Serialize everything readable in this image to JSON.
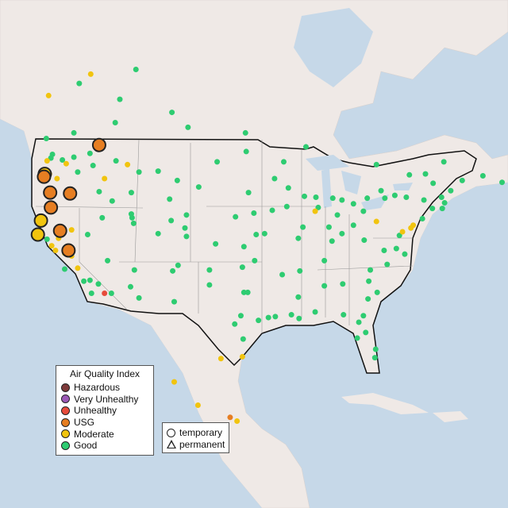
{
  "legend": {
    "title": "Air Quality Index",
    "categories": [
      {
        "key": "hazardous",
        "label": "Hazardous",
        "color": "#7e3a3a"
      },
      {
        "key": "very_unhealthy",
        "label": "Very Unhealthy",
        "color": "#9b59b6"
      },
      {
        "key": "unhealthy",
        "label": "Unhealthy",
        "color": "#e74c3c"
      },
      {
        "key": "usg",
        "label": "USG",
        "color": "#e67e22"
      },
      {
        "key": "moderate",
        "label": "Moderate",
        "color": "#f1c40f"
      },
      {
        "key": "good",
        "label": "Good",
        "color": "#2ecc71"
      }
    ],
    "no_data_color": "#bbbbbb"
  },
  "shape_legend": {
    "temporary": "temporary",
    "permanent": "permanent"
  },
  "map": {
    "land_color": "#efe9e6",
    "ocean_color": "#c6d8e8",
    "large_monitors": [
      [
        -116.2,
        48.6,
        "usg"
      ],
      [
        -123.3,
        45.5,
        "moderate"
      ],
      [
        -123.4,
        45.2,
        "usg"
      ],
      [
        -122.6,
        43.5,
        "usg"
      ],
      [
        -120.0,
        43.4,
        "usg"
      ],
      [
        -122.5,
        41.9,
        "usg"
      ],
      [
        -123.8,
        40.5,
        "moderate"
      ],
      [
        -124.2,
        39.0,
        "moderate"
      ],
      [
        -121.3,
        39.4,
        "usg"
      ],
      [
        -120.2,
        37.3,
        "usg"
      ]
    ],
    "small_monitors": [
      [
        -122.3,
        47.6,
        "good"
      ],
      [
        -122.5,
        47.2,
        "good"
      ],
      [
        -123.0,
        46.9,
        "moderate"
      ],
      [
        -121.0,
        47.0,
        "good"
      ],
      [
        -119.5,
        47.3,
        "good"
      ],
      [
        -117.4,
        47.7,
        "good"
      ],
      [
        -120.5,
        46.6,
        "moderate"
      ],
      [
        -122.7,
        45.5,
        "moderate"
      ],
      [
        -121.7,
        45.0,
        "moderate"
      ],
      [
        -119.0,
        45.7,
        "good"
      ],
      [
        -117.0,
        46.4,
        "good"
      ],
      [
        -116.2,
        43.6,
        "good"
      ],
      [
        -114.5,
        42.6,
        "good"
      ],
      [
        -112.0,
        43.5,
        "good"
      ],
      [
        -111.9,
        40.8,
        "good"
      ],
      [
        -111.7,
        40.2,
        "good"
      ],
      [
        -112.0,
        41.2,
        "good"
      ],
      [
        -114.0,
        46.9,
        "good"
      ],
      [
        -111.0,
        45.7,
        "good"
      ],
      [
        -108.5,
        45.8,
        "good"
      ],
      [
        -112.5,
        46.5,
        "moderate"
      ],
      [
        -115.5,
        45.0,
        "moderate"
      ],
      [
        -106.0,
        44.8,
        "good"
      ],
      [
        -104.8,
        41.1,
        "good"
      ],
      [
        -107.0,
        42.8,
        "good"
      ],
      [
        -105.0,
        39.7,
        "good"
      ],
      [
        -104.8,
        38.8,
        "good"
      ],
      [
        -106.8,
        40.5,
        "good"
      ],
      [
        -108.5,
        39.1,
        "good"
      ],
      [
        -106.6,
        35.1,
        "good"
      ],
      [
        -106.4,
        31.8,
        "good"
      ],
      [
        -105.9,
        35.7,
        "good"
      ],
      [
        -112.1,
        33.4,
        "good"
      ],
      [
        -111.0,
        32.2,
        "good"
      ],
      [
        -111.6,
        35.2,
        "good"
      ],
      [
        -114.6,
        32.7,
        "good"
      ],
      [
        -115.1,
        36.2,
        "good"
      ],
      [
        -119.8,
        39.5,
        "moderate"
      ],
      [
        -117.7,
        39.0,
        "good"
      ],
      [
        -115.8,
        40.8,
        "good"
      ],
      [
        -122.4,
        37.8,
        "moderate"
      ],
      [
        -121.9,
        37.3,
        "moderate"
      ],
      [
        -121.5,
        38.6,
        "moderate"
      ],
      [
        -120.7,
        37.0,
        "moderate"
      ],
      [
        -119.8,
        36.7,
        "moderate"
      ],
      [
        -119.0,
        35.4,
        "moderate"
      ],
      [
        -118.2,
        34.0,
        "good"
      ],
      [
        -117.4,
        34.1,
        "good"
      ],
      [
        -117.2,
        32.7,
        "good"
      ],
      [
        -116.3,
        33.7,
        "good"
      ],
      [
        -115.5,
        32.7,
        "unhealthy"
      ],
      [
        -120.7,
        35.3,
        "good"
      ],
      [
        -123.0,
        38.5,
        "good"
      ],
      [
        -124.1,
        40.8,
        "moderate"
      ],
      [
        -121.0,
        39.2,
        "moderate"
      ],
      [
        -100.8,
        46.8,
        "good"
      ],
      [
        -97.0,
        47.9,
        "good"
      ],
      [
        -103.2,
        44.1,
        "good"
      ],
      [
        -96.7,
        43.5,
        "good"
      ],
      [
        -96.0,
        41.3,
        "good"
      ],
      [
        -98.4,
        40.9,
        "good"
      ],
      [
        -101.0,
        38.0,
        "good"
      ],
      [
        -97.3,
        37.7,
        "good"
      ],
      [
        -95.7,
        39.0,
        "good"
      ],
      [
        -97.5,
        35.5,
        "good"
      ],
      [
        -95.9,
        36.2,
        "good"
      ],
      [
        -101.8,
        35.2,
        "good"
      ],
      [
        -101.8,
        33.6,
        "good"
      ],
      [
        -97.3,
        32.8,
        "good"
      ],
      [
        -96.8,
        32.8,
        "good"
      ],
      [
        -97.7,
        30.3,
        "good"
      ],
      [
        -98.5,
        29.4,
        "good"
      ],
      [
        -95.4,
        29.8,
        "good"
      ],
      [
        -94.1,
        30.1,
        "good"
      ],
      [
        -97.4,
        27.8,
        "good"
      ],
      [
        -97.5,
        25.9,
        "moderate"
      ],
      [
        -93.2,
        30.2,
        "good"
      ],
      [
        -91.1,
        30.4,
        "good"
      ],
      [
        -90.1,
        30.0,
        "good"
      ],
      [
        -93.3,
        45.0,
        "good"
      ],
      [
        -92.1,
        46.8,
        "good"
      ],
      [
        -91.5,
        44.0,
        "good"
      ],
      [
        -93.6,
        41.6,
        "good"
      ],
      [
        -91.7,
        42.0,
        "good"
      ],
      [
        -90.2,
        38.6,
        "good"
      ],
      [
        -92.3,
        34.7,
        "good"
      ],
      [
        -94.6,
        39.1,
        "good"
      ],
      [
        -89.4,
        43.1,
        "good"
      ],
      [
        -87.9,
        43.0,
        "good"
      ],
      [
        -87.6,
        41.9,
        "good"
      ],
      [
        -88.0,
        41.5,
        "moderate"
      ],
      [
        -89.6,
        39.8,
        "good"
      ],
      [
        -86.2,
        39.8,
        "good"
      ],
      [
        -85.1,
        41.1,
        "good"
      ],
      [
        -83.0,
        42.3,
        "good"
      ],
      [
        -84.5,
        42.7,
        "good"
      ],
      [
        -85.7,
        42.9,
        "good"
      ],
      [
        -84.5,
        39.1,
        "good"
      ],
      [
        -83.0,
        40.0,
        "good"
      ],
      [
        -81.7,
        41.5,
        "good"
      ],
      [
        -80.0,
        40.4,
        "moderate"
      ],
      [
        -85.8,
        38.3,
        "good"
      ],
      [
        -86.8,
        36.2,
        "good"
      ],
      [
        -90.0,
        35.1,
        "good"
      ],
      [
        -84.4,
        33.7,
        "good"
      ],
      [
        -86.8,
        33.5,
        "good"
      ],
      [
        -88.0,
        30.7,
        "good"
      ],
      [
        -90.2,
        32.3,
        "good"
      ],
      [
        -81.0,
        34.0,
        "good"
      ],
      [
        -80.8,
        35.2,
        "good"
      ],
      [
        -78.6,
        35.8,
        "good"
      ],
      [
        -77.4,
        37.5,
        "good"
      ],
      [
        -79.9,
        32.8,
        "good"
      ],
      [
        -81.1,
        32.1,
        "good"
      ],
      [
        -81.7,
        30.3,
        "good"
      ],
      [
        -82.5,
        27.9,
        "good"
      ],
      [
        -81.4,
        28.5,
        "good"
      ],
      [
        -80.2,
        25.8,
        "good"
      ],
      [
        -80.1,
        26.7,
        "good"
      ],
      [
        -84.3,
        30.4,
        "good"
      ],
      [
        -82.3,
        29.6,
        "good"
      ],
      [
        -77.0,
        38.9,
        "good"
      ],
      [
        -76.6,
        39.3,
        "moderate"
      ],
      [
        -75.2,
        40.0,
        "moderate"
      ],
      [
        -74.0,
        40.7,
        "good"
      ],
      [
        -73.8,
        42.7,
        "good"
      ],
      [
        -76.1,
        43.0,
        "good"
      ],
      [
        -78.9,
        42.9,
        "good"
      ],
      [
        -77.6,
        43.2,
        "good"
      ],
      [
        -71.1,
        42.4,
        "good"
      ],
      [
        -71.4,
        41.8,
        "good"
      ],
      [
        -72.7,
        41.8,
        "good"
      ],
      [
        -72.6,
        44.5,
        "good"
      ],
      [
        -70.3,
        43.7,
        "good"
      ],
      [
        -68.8,
        44.8,
        "good"
      ],
      [
        -71.5,
        43.0,
        "good"
      ],
      [
        -75.5,
        39.7,
        "moderate"
      ],
      [
        -76.3,
        36.9,
        "good"
      ],
      [
        -79.0,
        37.3,
        "good"
      ],
      [
        -81.6,
        38.4,
        "good"
      ],
      [
        -73.6,
        45.5,
        "good"
      ],
      [
        -75.7,
        45.4,
        "good"
      ],
      [
        -79.4,
        43.7,
        "good"
      ],
      [
        -81.2,
        42.9,
        "good"
      ],
      [
        -66.1,
        45.3,
        "good"
      ],
      [
        -63.6,
        44.6,
        "good"
      ],
      [
        -71.2,
        46.8,
        "good"
      ],
      [
        -97.1,
        49.9,
        "good"
      ],
      [
        -104.6,
        50.5,
        "good"
      ],
      [
        -106.7,
        52.1,
        "good"
      ],
      [
        -113.5,
        53.5,
        "good"
      ],
      [
        -114.1,
        51.0,
        "good"
      ],
      [
        -123.1,
        49.3,
        "good"
      ],
      [
        -119.5,
        49.9,
        "good"
      ],
      [
        -122.8,
        53.9,
        "moderate"
      ],
      [
        -118.8,
        55.2,
        "good"
      ],
      [
        -111.4,
        56.7,
        "good"
      ],
      [
        -117.3,
        56.2,
        "moderate"
      ],
      [
        -89.2,
        48.4,
        "good"
      ],
      [
        -80.0,
        46.5,
        "good"
      ],
      [
        -60.0,
        48.0,
        "good"
      ],
      [
        -106.4,
        23.2,
        "moderate"
      ],
      [
        -103.3,
        20.7,
        "moderate"
      ],
      [
        -99.1,
        19.4,
        "usg"
      ],
      [
        -98.2,
        19.0,
        "moderate"
      ],
      [
        -100.3,
        25.7,
        "moderate"
      ]
    ]
  }
}
